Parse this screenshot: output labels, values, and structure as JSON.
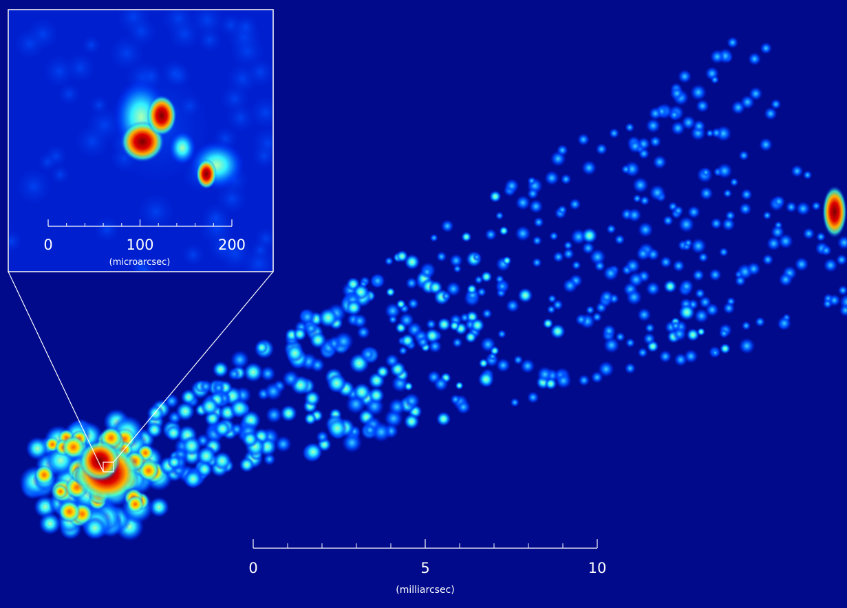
{
  "main_scale": {
    "ticks": [
      0,
      5,
      10
    ],
    "unit_label": "(milliarcsec)"
  },
  "inset_scale": {
    "ticks": [
      0,
      100,
      200
    ],
    "unit_label": "(microarcsec)"
  }
}
